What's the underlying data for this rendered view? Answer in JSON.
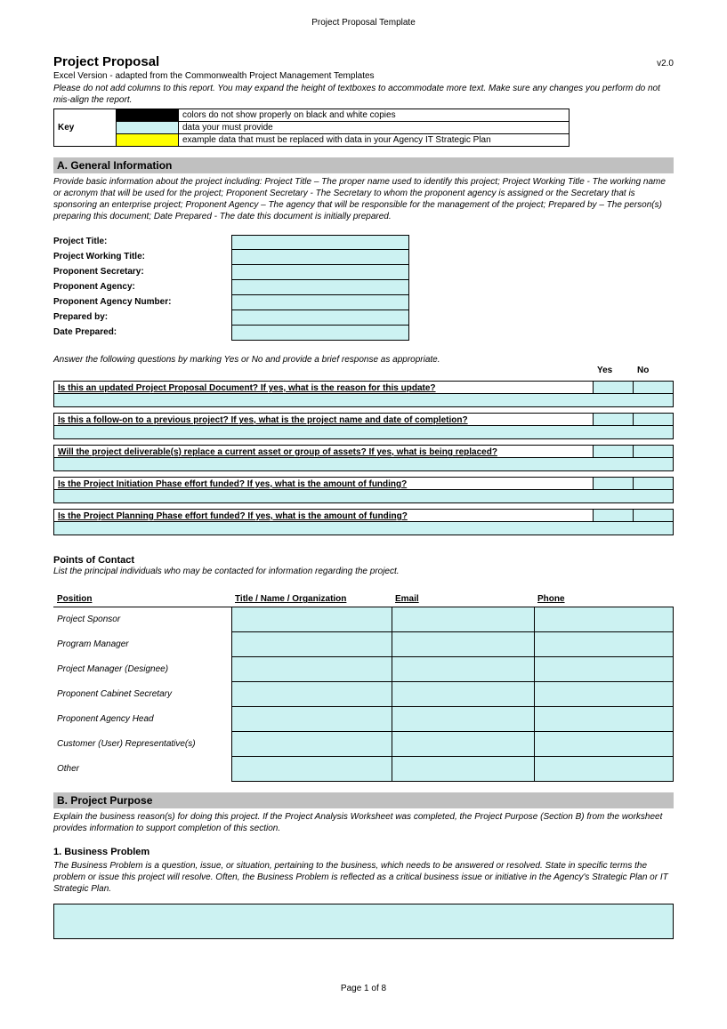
{
  "doc_header": "Project Proposal Template",
  "title": "Project Proposal",
  "version": "v2.0",
  "subtitle": "Excel Version - adapted from the Commonwealth Project Management Templates",
  "instruction": "Please do not add columns to this report.  You may expand the height of textboxes to accommodate more text.  Make sure any changes you perform do not mis-align the report.",
  "key": {
    "label": "Key",
    "rows": [
      {
        "swatch": "#000000",
        "text_color": "#ffffff",
        "text": "colors do not show properly on black and white copies"
      },
      {
        "swatch": "#ccf2f2",
        "text_color": "#000000",
        "text": "data your must provide"
      },
      {
        "swatch": "#ffff00",
        "text_color": "#000000",
        "text": "example data that must be replaced with data in your Agency IT Strategic Plan"
      }
    ]
  },
  "section_a": {
    "header": "A. General Information",
    "desc": "Provide basic information about the project including: Project Title – The proper name used to identify this project; Project Working Title - The working name or acronym that will be used for the project; Proponent Secretary - The Secretary to whom the proponent agency is assigned or the Secretary that is sponsoring an enterprise project; Proponent Agency – The agency that will be responsible for the management of the project; Prepared by – The person(s) preparing this document; Date Prepared - The date this document is initially prepared.",
    "fields": [
      "Project Title:",
      "Project Working Title:",
      "Proponent Secretary:",
      "Proponent Agency:",
      "Proponent Agency Number:",
      "Prepared by:",
      "Date Prepared:"
    ],
    "qa_intro": "Answer the following questions by marking Yes or No and provide a brief response as appropriate.",
    "yes": "Yes",
    "no": "No",
    "questions": [
      "Is this an updated Project Proposal Document?  If yes, what is the reason for this update?",
      "Is this a follow-on to a previous project?  If yes, what is the project name and date of completion?",
      "Will the project deliverable(s) replace a current asset or group of assets?  If yes, what is being replaced?",
      "Is the Project Initiation Phase effort funded?  If yes, what is the amount of funding?",
      "Is the Project Planning Phase effort funded?  If yes, what is the amount of funding?"
    ],
    "poc": {
      "title": "Points of Contact",
      "desc": "List the principal individuals who may be contacted for information regarding the project.",
      "headers": [
        "Position",
        "Title / Name / Organization",
        "Email",
        "Phone"
      ],
      "positions": [
        "Project Sponsor",
        "Program Manager",
        "Project Manager (Designee)",
        "Proponent Cabinet Secretary",
        "Proponent Agency Head",
        "Customer (User) Representative(s)",
        "Other"
      ]
    }
  },
  "section_b": {
    "header": "B. Project Purpose",
    "desc": "Explain the business reason(s) for doing this project.  If the Project Analysis Worksheet was completed, the Project Purpose (Section B) from the worksheet provides information to support completion of this section.",
    "sub1_title": "1. Business Problem",
    "sub1_desc": "The Business Problem is a question, issue, or situation, pertaining to the business, which needs to be answered or resolved.  State in specific terms the problem or issue this project will resolve.  Often, the Business Problem is reflected as a critical business issue or initiative in the Agency's Strategic Plan or IT Strategic Plan."
  },
  "footer": "Page 1 of 8",
  "colors": {
    "input_bg": "#ccf2f2",
    "section_bg": "#c0c0c0",
    "yellow": "#ffff00",
    "black": "#000000"
  }
}
